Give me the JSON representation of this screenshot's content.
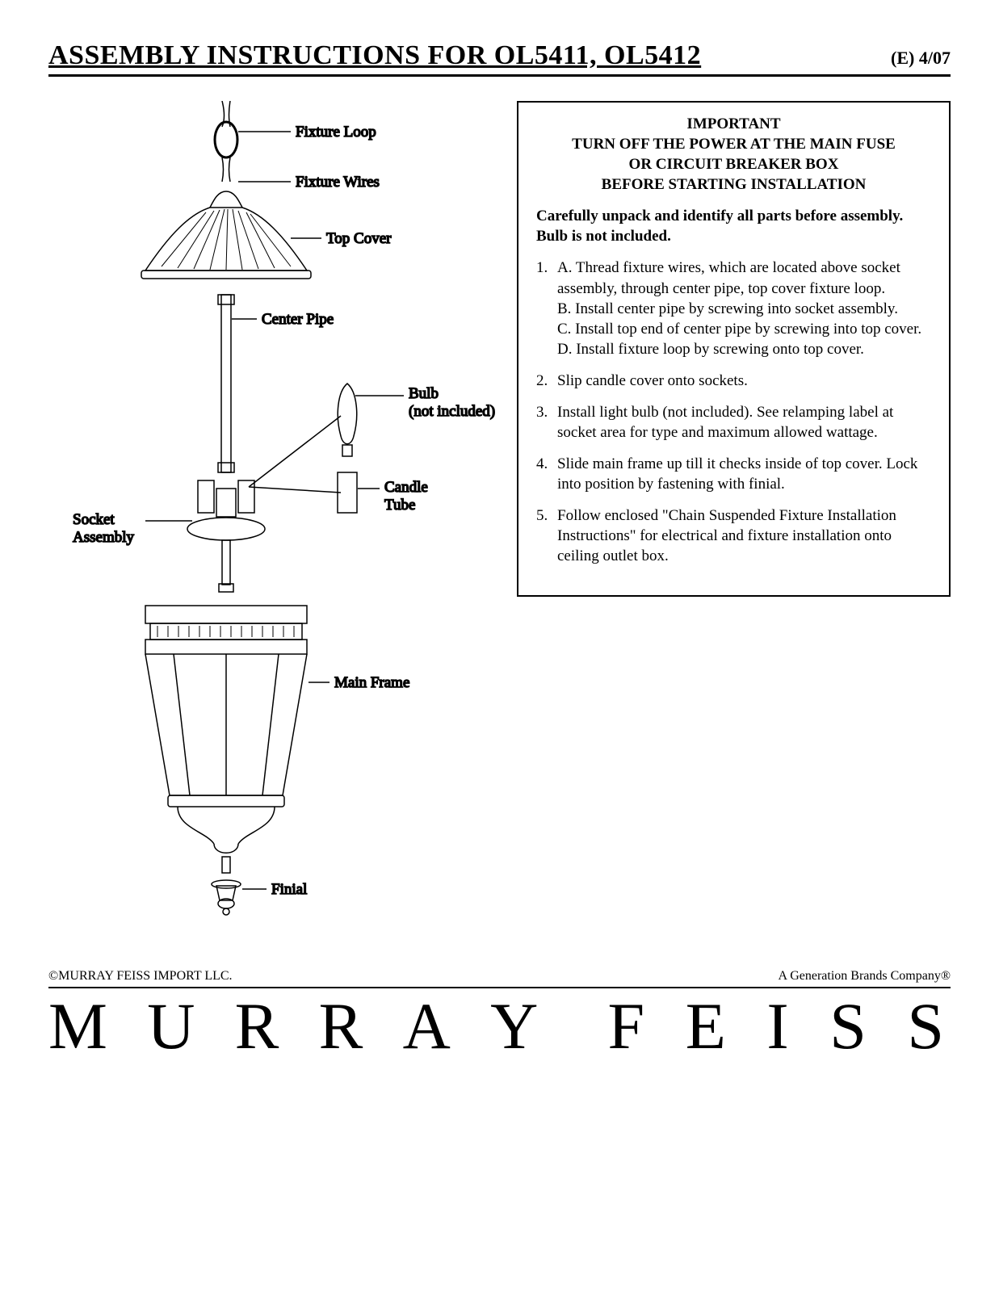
{
  "header": {
    "title": "ASSEMBLY INSTRUCTIONS FOR OL5411, OL5412",
    "page_code": "(E)  4/07"
  },
  "diagram": {
    "labels": {
      "fixture_loop": "Fixture Loop",
      "fixture_wires": "Fixture Wires",
      "top_cover": "Top Cover",
      "center_pipe": "Center Pipe",
      "bulb_l1": "Bulb",
      "bulb_l2": "(not included)",
      "candle_l1": "Candle",
      "candle_l2": "Tube",
      "socket_l1": "Socket",
      "socket_l2": "Assembly",
      "main_frame": "Main Frame",
      "finial": "Finial"
    },
    "stroke": "#000000",
    "bg": "#ffffff"
  },
  "instructions": {
    "important_lines": [
      "IMPORTANT",
      "TURN OFF THE POWER AT THE MAIN FUSE",
      "OR CIRCUIT BREAKER BOX",
      "BEFORE STARTING INSTALLATION"
    ],
    "unpack": "Carefully unpack and identify all parts before assembly. Bulb is not  included.",
    "steps": [
      "A. Thread fixture wires, which are located above socket assembly, through center pipe, top cover fixture loop.\nB. Install center pipe by screwing into socket assembly.\nC. Install top end of center pipe by screwing into top cover.\nD. Install fixture loop by screwing onto top cover.",
      "Slip candle cover onto sockets.",
      "Install light bulb (not included). See relamping label at socket area for type and maximum allowed wattage.",
      "Slide main frame up till it checks inside of top cover. Lock into position by fastening with finial.",
      "Follow enclosed \"Chain Suspended Fixture Installation Instructions\" for electrical and fixture installation onto ceiling outlet box."
    ]
  },
  "footer": {
    "copyright": "©MURRAY FEISS IMPORT LLC.",
    "company": "A Generation Brands Company®",
    "brand_first": "MURRAY",
    "brand_last": "FEISS"
  },
  "style": {
    "text_color": "#000000",
    "border_color": "#000000",
    "title_fontsize": 34,
    "body_fontsize": 19,
    "brand_fontsize": 82
  }
}
